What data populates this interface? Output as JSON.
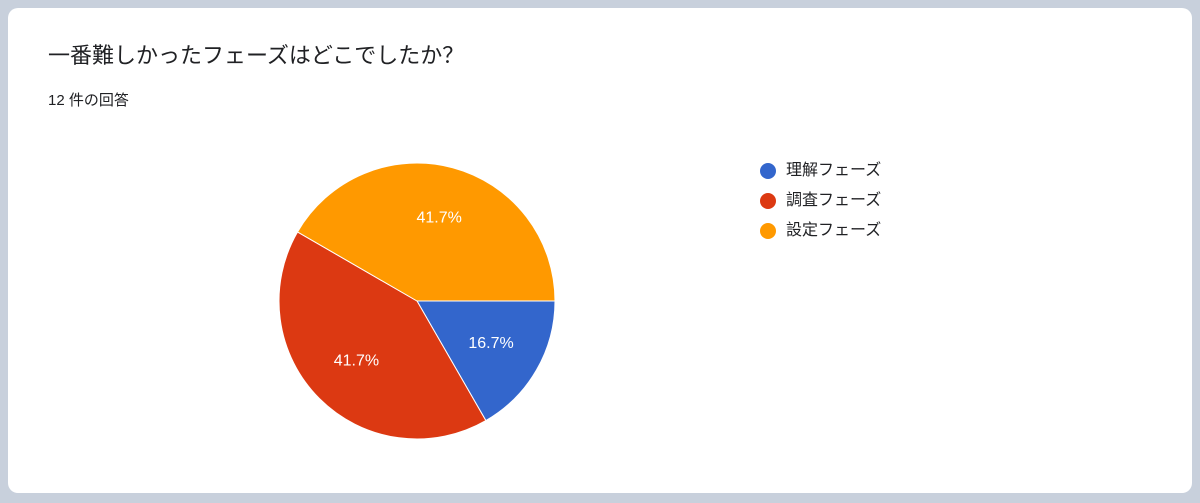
{
  "chart_data": {
    "type": "pie",
    "title": "一番難しかったフェーズはどこでしたか？",
    "subtitle": "12 件の回答",
    "categories": [
      "理解フェーズ",
      "調査フェーズ",
      "設定フェーズ"
    ],
    "values": [
      16.7,
      41.7,
      41.7
    ],
    "value_labels": [
      "16.7%",
      "41.7%",
      "41.7%"
    ],
    "colors": [
      "#3366cc",
      "#dc3912",
      "#ff9900"
    ],
    "legend": "right"
  }
}
